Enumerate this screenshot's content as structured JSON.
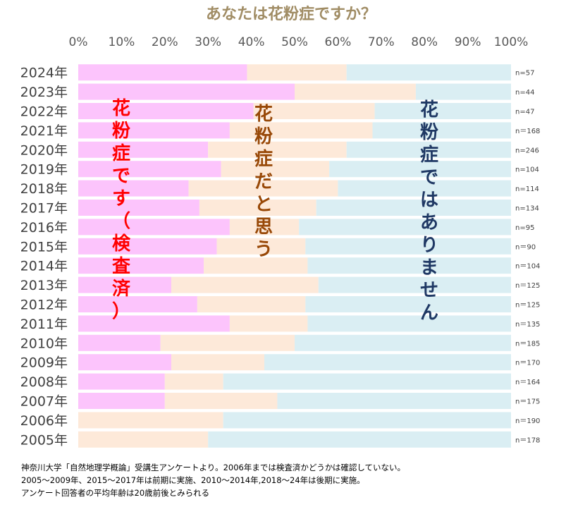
{
  "chart_data": {
    "type": "bar",
    "stacked": "100%",
    "orientation": "horizontal",
    "title": "あなたは花粉症ですか？",
    "x_ticks": [
      "0%",
      "10%",
      "20%",
      "30%",
      "40%",
      "50%",
      "60%",
      "70%",
      "80%",
      "90%",
      "100%"
    ],
    "xlim": [
      0,
      100
    ],
    "categories": [
      "2024年",
      "2023年",
      "2022年",
      "2021年",
      "2020年",
      "2019年",
      "2018年",
      "2017年",
      "2016年",
      "2015年",
      "2014年",
      "2013年",
      "2012年",
      "2011年",
      "2010年",
      "2009年",
      "2008年",
      "2007年",
      "2006年",
      "2005年"
    ],
    "n_labels": [
      "n=57",
      "n=44",
      "n=47",
      "n＝168",
      "n=246",
      "n=104",
      "n=114",
      "n=134",
      "n=95",
      "n＝90",
      "n＝104",
      "n＝125",
      "n＝125",
      "n＝135",
      "n＝185",
      "n＝170",
      "n＝164",
      "n＝175",
      "n＝190",
      "n＝178"
    ],
    "series": [
      {
        "name": "花粉症です（検査済）",
        "color": "#fcc4fc",
        "values": [
          39,
          50,
          40.5,
          35,
          30,
          33,
          25.5,
          28,
          35,
          32,
          29,
          21.5,
          27.5,
          35,
          19,
          21.5,
          20,
          20,
          0,
          0
        ]
      },
      {
        "name": "花粉症だと思う",
        "color": "#fde9d9",
        "values": [
          23,
          28,
          28,
          33,
          32,
          25,
          34.5,
          27,
          16,
          20.5,
          24,
          34,
          25,
          18,
          31,
          21.5,
          13.5,
          26,
          33.5,
          30
        ]
      },
      {
        "name": "花粉症ではありません",
        "color": "#daeef3",
        "values": [
          38,
          22,
          31.5,
          32,
          38,
          42,
          40,
          45,
          49,
          47.5,
          47,
          44.5,
          47.5,
          47,
          50,
          57,
          66.5,
          54,
          66.5,
          70
        ]
      }
    ],
    "series_text_colors": [
      "#ff0000",
      "#984807",
      "#1f3864"
    ],
    "grid": false,
    "legend": "none"
  },
  "notes": [
    "神奈川大学「自然地理学概論」受講生アンケートより。2006年までは検査済かどうかは確認していない。",
    "2005～2009年、2015～2017年は前期に実施、2010～2014年,2018～24年は後期に実施。",
    "アンケート回答者の平均年齢は20歳前後とみられる"
  ]
}
